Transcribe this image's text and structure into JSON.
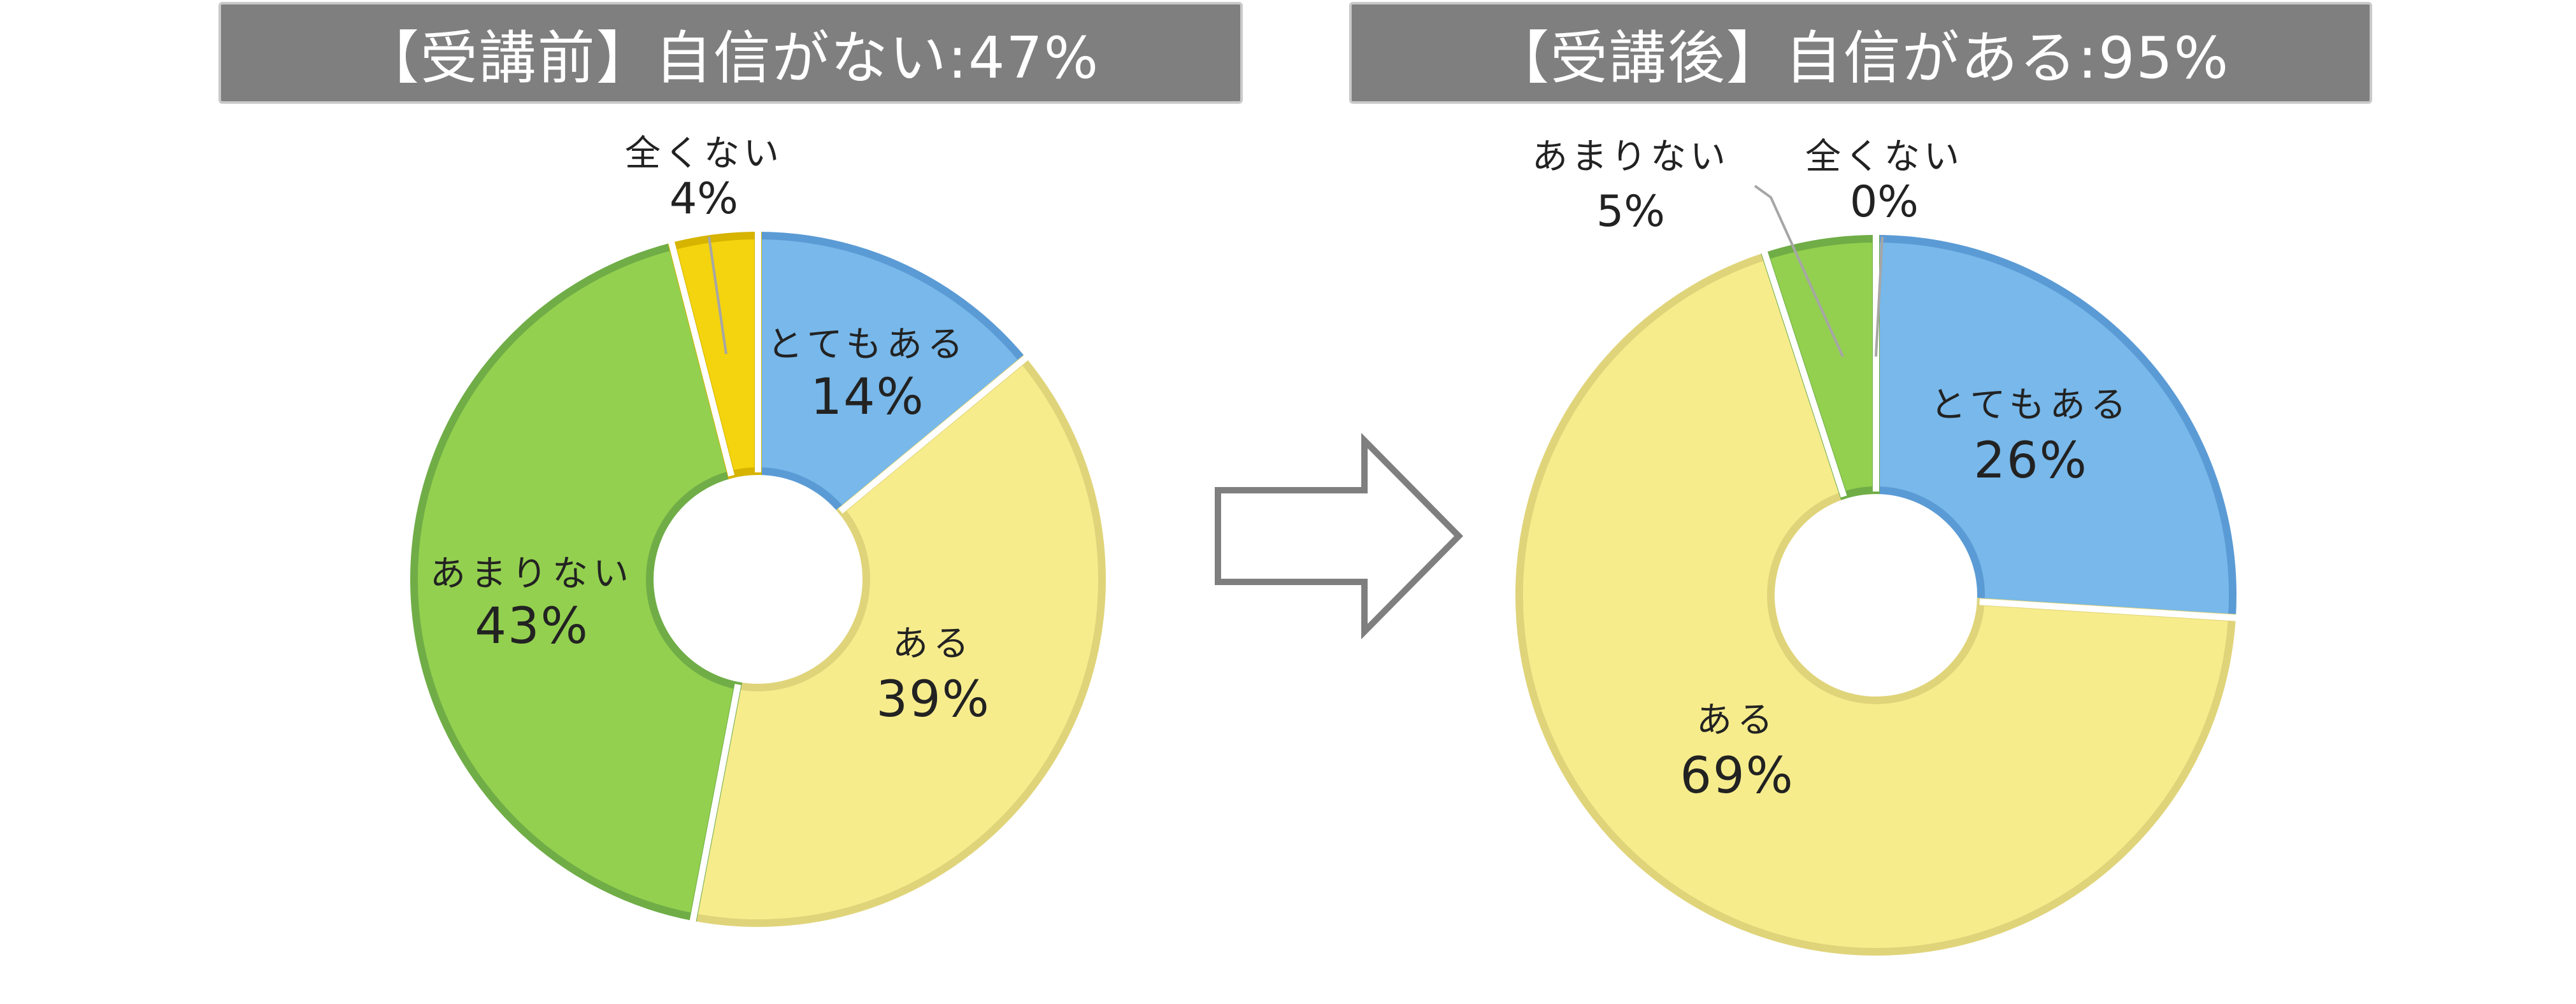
{
  "chart_data": [
    {
      "type": "pie",
      "title": "【受講前】自信がない:47%",
      "categories": [
        "とてもある",
        "ある",
        "あまりない",
        "全くない"
      ],
      "values": [
        14,
        39,
        43,
        4
      ],
      "labels": [
        "14%",
        "39%",
        "43%",
        "4%"
      ],
      "colors": [
        "#78b8ea",
        "#f6ec8c",
        "#93d04f",
        "#f3d40e"
      ],
      "edge_colors": [
        "#5b9bd5",
        "#e0d47a",
        "#70ad47",
        "#d6b400"
      ]
    },
    {
      "type": "pie",
      "title": "【受講後】自信がある:95%",
      "categories": [
        "とてもある",
        "ある",
        "あまりない",
        "全くない"
      ],
      "values": [
        26,
        69,
        5,
        0
      ],
      "labels": [
        "26%",
        "69%",
        "5%",
        "0%"
      ],
      "colors": [
        "#78b8ea",
        "#f6ec8c",
        "#93d04f",
        "#f3d40e"
      ],
      "edge_colors": [
        "#5b9bd5",
        "#e0d47a",
        "#70ad47",
        "#d6b400"
      ]
    }
  ],
  "arrow": {
    "icon": "right-arrow-icon",
    "color": "#7f7f7f"
  }
}
